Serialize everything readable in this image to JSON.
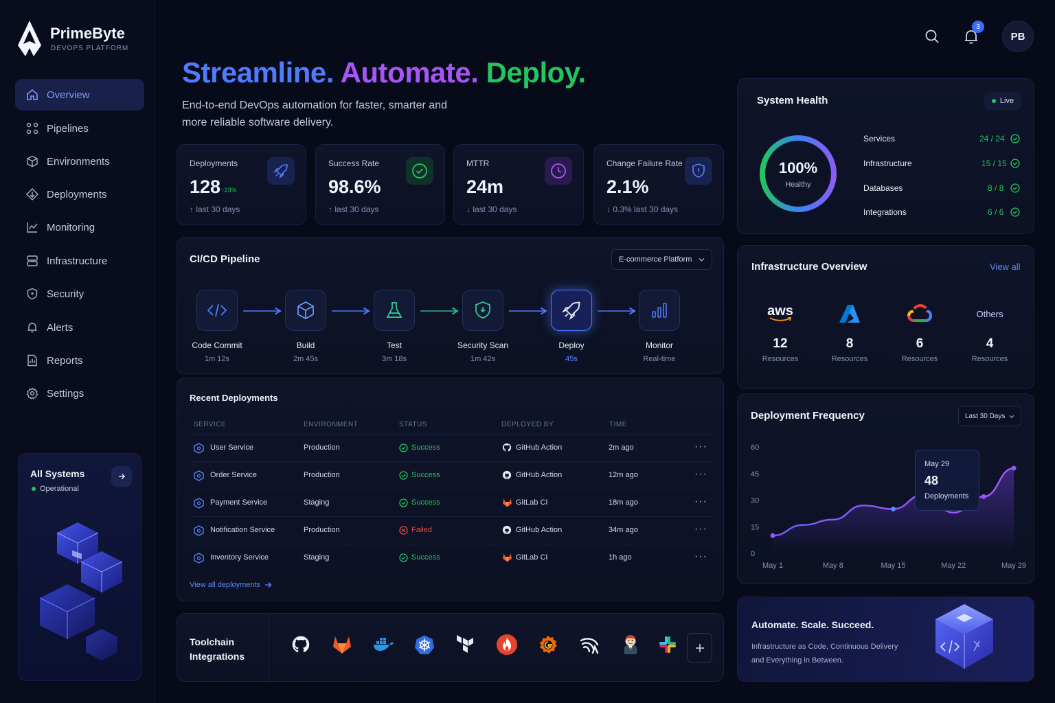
{
  "brand": {
    "name": "PrimeByte",
    "tagline": "DEVOPS PLATFORM"
  },
  "header": {
    "notification_count": "3",
    "avatar_initials": "PB"
  },
  "hero": {
    "headline_1": "Streamline.",
    "headline_2": "Automate.",
    "headline_3": "Deploy.",
    "subtitle_line1": "End-to-end DevOps automation for faster, smarter and",
    "subtitle_line2": "more reliable software delivery."
  },
  "sidebar": {
    "items": [
      {
        "label": "Overview",
        "icon": "home-icon"
      },
      {
        "label": "Pipelines",
        "icon": "pipelines-icon"
      },
      {
        "label": "Environments",
        "icon": "cube-icon"
      },
      {
        "label": "Deployments",
        "icon": "deploy-icon"
      },
      {
        "label": "Monitoring",
        "icon": "chart-icon"
      },
      {
        "label": "Infrastructure",
        "icon": "server-icon"
      },
      {
        "label": "Security",
        "icon": "shield-icon"
      },
      {
        "label": "Alerts",
        "icon": "bell-icon"
      },
      {
        "label": "Reports",
        "icon": "report-icon"
      },
      {
        "label": "Settings",
        "icon": "gear-icon"
      }
    ],
    "status_card": {
      "title": "All Systems",
      "status": "Operational"
    }
  },
  "kpis": [
    {
      "label": "Deployments",
      "value": "128",
      "delta": "↑23%",
      "sub": "↑ last 30 days",
      "icon": "rocket-icon",
      "color": "#4f7bff"
    },
    {
      "label": "Success Rate",
      "value": "98.6%",
      "delta": "",
      "sub": "↑ last 30 days",
      "icon": "check-circle-icon",
      "color": "#22c55e"
    },
    {
      "label": "MTTR",
      "value": "24m",
      "delta": "",
      "sub": "↓ last 30 days",
      "icon": "clock-icon",
      "color": "#a855f7"
    },
    {
      "label": "Change Failure Rate",
      "value": "2.1%",
      "delta": "",
      "sub": "↓ 0.3% last 30 days",
      "icon": "shield-icon",
      "color": "#4f7bff"
    }
  ],
  "pipeline": {
    "title": "CI/CD Pipeline",
    "project": "E-commerce Platform",
    "stages": [
      {
        "name": "Code Commit",
        "time": "1m 12s",
        "icon": "code-icon"
      },
      {
        "name": "Build",
        "time": "2m 45s",
        "icon": "box-icon"
      },
      {
        "name": "Test",
        "time": "3m 18s",
        "icon": "flask-icon"
      },
      {
        "name": "Security Scan",
        "time": "1m 42s",
        "icon": "shield-icon"
      },
      {
        "name": "Deploy",
        "time": "45s",
        "icon": "rocket-icon"
      },
      {
        "name": "Monitor",
        "time": "Real-time",
        "icon": "bars-icon"
      }
    ]
  },
  "deployments": {
    "title": "Recent Deployments",
    "columns": [
      "SERVICE",
      "ENVIRONMENT",
      "STATUS",
      "DEPLOYED BY",
      "TIME"
    ],
    "rows": [
      {
        "service": "User Service",
        "env": "Production",
        "status": "Success",
        "by": "GitHub Action",
        "time": "2m ago"
      },
      {
        "service": "Order Service",
        "env": "Production",
        "status": "Success",
        "by": "GitHub Action",
        "time": "12m ago"
      },
      {
        "service": "Payment Service",
        "env": "Staging",
        "status": "Success",
        "by": "GitLab CI",
        "time": "18m ago"
      },
      {
        "service": "Notification Service",
        "env": "Production",
        "status": "Failed",
        "by": "GitHub Action",
        "time": "34m ago"
      },
      {
        "service": "Inventory Service",
        "env": "Staging",
        "status": "Success",
        "by": "GitLab CI",
        "time": "1h ago"
      }
    ],
    "view_all": "View all deployments"
  },
  "toolchain": {
    "title_line1": "Toolchain",
    "title_line2": "Integrations",
    "tools": [
      "github-icon",
      "gitlab-icon",
      "docker-icon",
      "kubernetes-icon",
      "terraform-icon",
      "jfrog-icon",
      "grafana-icon",
      "argo-icon",
      "jenkins-icon",
      "slack-icon"
    ]
  },
  "health": {
    "title": "System Health",
    "live": "Live",
    "percent": "100%",
    "percent_label": "Healthy",
    "progress": 1.0,
    "items": [
      {
        "label": "Services",
        "value": "24 / 24"
      },
      {
        "label": "Infrastructure",
        "value": "15 / 15"
      },
      {
        "label": "Databases",
        "value": "8 / 8"
      },
      {
        "label": "Integrations",
        "value": "6 / 6"
      }
    ]
  },
  "infra": {
    "title": "Infrastructure Overview",
    "view_all": "View all",
    "providers": [
      {
        "name": "aws",
        "count": "12",
        "label": "Resources"
      },
      {
        "name": "azure",
        "count": "8",
        "label": "Resources"
      },
      {
        "name": "gcp",
        "count": "6",
        "label": "Resources"
      },
      {
        "name": "Others",
        "count": "4",
        "label": "Resources"
      }
    ]
  },
  "frequency": {
    "title": "Deployment Frequency",
    "range": "Last 30 Days",
    "tooltip": {
      "date": "May 29",
      "value": "48",
      "label": "Deployments"
    }
  },
  "chart_data": {
    "type": "line",
    "x": [
      "May 1",
      "May 4",
      "May 8",
      "May 11",
      "May 15",
      "May 18",
      "May 22",
      "May 26",
      "May 29"
    ],
    "values": [
      10,
      16,
      19,
      27,
      25,
      33,
      23,
      32,
      48
    ],
    "xticks": [
      "May 1",
      "May 8",
      "May 15",
      "May 22",
      "May 29"
    ],
    "yticks": [
      "0",
      "15",
      "30",
      "45",
      "60"
    ],
    "ylim": [
      0,
      60
    ],
    "color": "#8b5cf6"
  },
  "promo": {
    "title": "Automate. Scale. Succeed.",
    "line1": "Infrastructure as Code, Continuous Delivery",
    "line2": "and Everything in Between."
  }
}
